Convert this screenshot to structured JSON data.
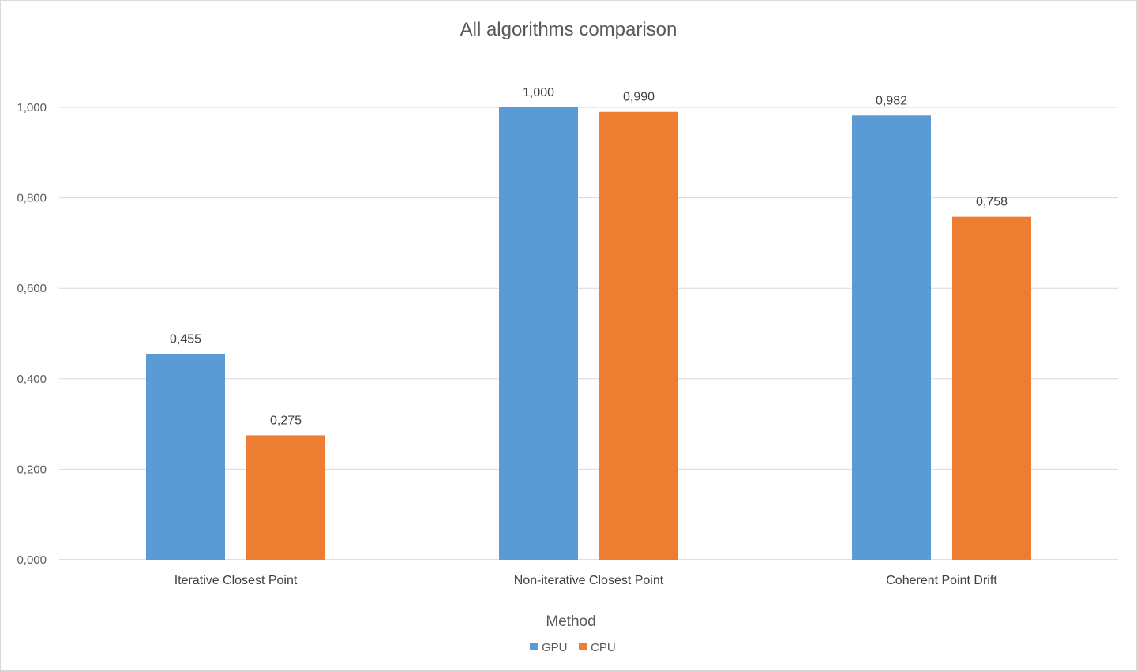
{
  "chart_data": {
    "type": "bar",
    "title": "All algorithms comparison",
    "xlabel": "Method",
    "ylabel": "",
    "categories": [
      "Iterative Closest Point",
      "Non-iterative Closest Point",
      "Coherent Point Drift"
    ],
    "series": [
      {
        "name": "GPU",
        "color": "#5b9bd5",
        "values": [
          0.455,
          1.0,
          0.982
        ],
        "labels": [
          "0,455",
          "1,000",
          "0,982"
        ]
      },
      {
        "name": "CPU",
        "color": "#ed7d31",
        "values": [
          0.275,
          0.99,
          0.758
        ],
        "labels": [
          "0,275",
          "0,990",
          "0,758"
        ]
      }
    ],
    "ylim": [
      0,
      1
    ],
    "yticks": [
      0,
      0.2,
      0.4,
      0.6,
      0.8,
      1.0
    ],
    "ytick_labels": [
      "0,000",
      "0,200",
      "0,400",
      "0,600",
      "0,800",
      "1,000"
    ],
    "grid": true,
    "legend_position": "bottom"
  }
}
